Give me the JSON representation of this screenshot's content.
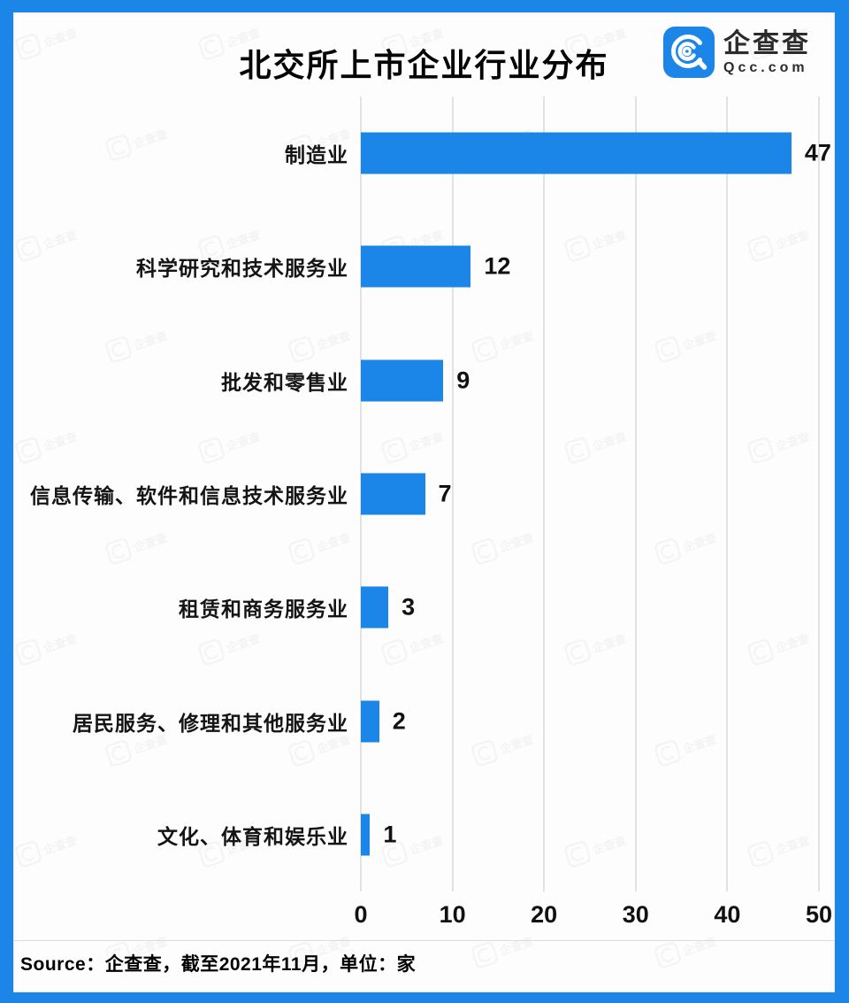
{
  "header": {
    "title": "北交所上市企业行业分布",
    "logo": {
      "name": "企查查",
      "domain": "Qcc.com"
    }
  },
  "chart_data": {
    "type": "bar",
    "orientation": "horizontal",
    "title": "北交所上市企业行业分布",
    "categories": [
      "制造业",
      "科学研究和技术服务业",
      "批发和零售业",
      "信息传输、软件和信息技术服务业",
      "租赁和商务服务业",
      "居民服务、修理和其他服务业",
      "文化、体育和娱乐业"
    ],
    "values": [
      47,
      12,
      9,
      7,
      3,
      2,
      1
    ],
    "xlabel": "",
    "ylabel": "",
    "xlim": [
      0,
      50
    ],
    "xticks": [
      0,
      10,
      20,
      30,
      40,
      50
    ],
    "grid": "vertical",
    "legend": "none",
    "unit": "家",
    "bar_color": "#1b86e8"
  },
  "footer": {
    "source": "Source：企查查，截至2021年11月，单位：家"
  },
  "colors": {
    "frame_blue": "#1b86e8",
    "bar_blue": "#1b86e8",
    "grid_gray": "#e2e2e2",
    "text_dark": "#111111",
    "card_bg": "#fdfdfd"
  }
}
